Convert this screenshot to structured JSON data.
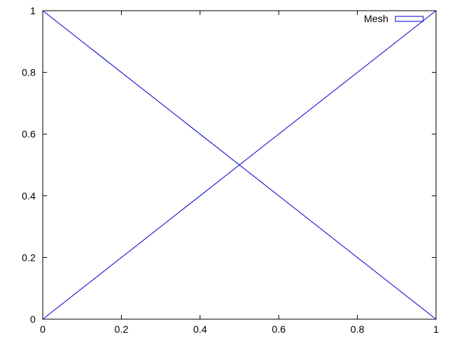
{
  "chart_data": {
    "type": "line",
    "title": "",
    "xlabel": "",
    "ylabel": "",
    "xlim": [
      0,
      1
    ],
    "ylim": [
      0,
      1
    ],
    "grid": false,
    "legend_position": "top-right",
    "x_ticks": [
      "0",
      "0.2",
      "0.4",
      "0.6",
      "0.8",
      "1"
    ],
    "y_ticks": [
      "0",
      "0.2",
      "0.4",
      "0.6",
      "0.8",
      "1"
    ],
    "series": [
      {
        "name": "Mesh",
        "color": "#0000cc",
        "segments": [
          {
            "x": [
              0,
              1
            ],
            "y": [
              0,
              1
            ]
          },
          {
            "x": [
              0,
              1
            ],
            "y": [
              1,
              0
            ]
          }
        ]
      }
    ]
  }
}
